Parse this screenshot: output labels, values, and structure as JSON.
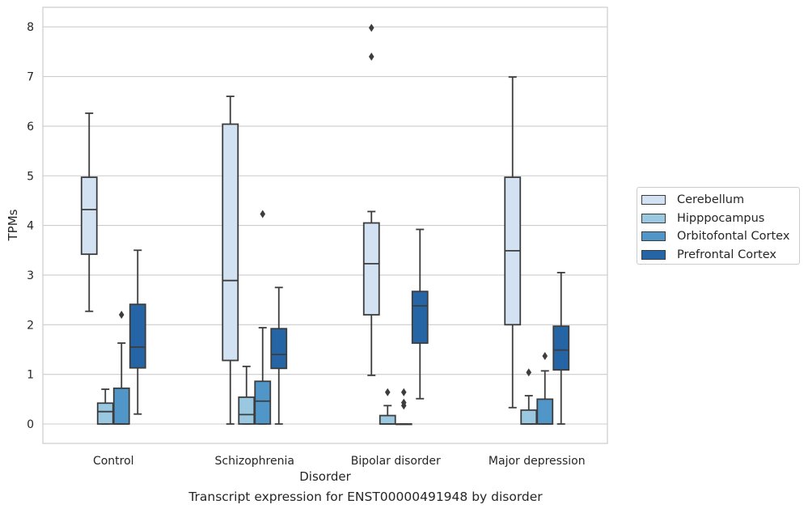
{
  "caption": "Transcript expression for ENST00000491948 by disorder",
  "chart_data": {
    "type": "box",
    "title": "",
    "xlabel": "Disorder",
    "ylabel": "TPMs",
    "ylim": [
      -0.4,
      8.4
    ],
    "yticks": [
      0,
      1,
      2,
      3,
      4,
      5,
      6,
      7,
      8
    ],
    "grid": true,
    "legend_placement": "right, outside plot",
    "categories": [
      "Control",
      "Schizophrenia",
      "Bipolar disorder",
      "Major depression"
    ],
    "series": [
      {
        "name": "Cerebellum",
        "color": "#d2e2f2",
        "boxes": [
          {
            "whislo": 2.27,
            "q1": 3.42,
            "median": 4.32,
            "q3": 4.97,
            "whishi": 6.26,
            "fliers": []
          },
          {
            "whislo": 0.0,
            "q1": 1.28,
            "median": 2.89,
            "q3": 6.04,
            "whishi": 6.6,
            "fliers": []
          },
          {
            "whislo": 0.98,
            "q1": 2.2,
            "median": 3.23,
            "q3": 4.05,
            "whishi": 4.28,
            "fliers": [
              7.4,
              7.98
            ]
          },
          {
            "whislo": 0.33,
            "q1": 2.0,
            "median": 3.49,
            "q3": 4.97,
            "whishi": 6.99,
            "fliers": []
          }
        ]
      },
      {
        "name": "Hipppocampus",
        "color": "#9ac8e1",
        "boxes": [
          {
            "whislo": 0.0,
            "q1": 0.0,
            "median": 0.25,
            "q3": 0.42,
            "whishi": 0.7,
            "fliers": []
          },
          {
            "whislo": 0.0,
            "q1": 0.0,
            "median": 0.19,
            "q3": 0.54,
            "whishi": 1.16,
            "fliers": []
          },
          {
            "whislo": 0.0,
            "q1": 0.0,
            "median": 0.0,
            "q3": 0.17,
            "whishi": 0.37,
            "fliers": [
              0.64
            ]
          },
          {
            "whislo": 0.0,
            "q1": 0.0,
            "median": 0.0,
            "q3": 0.28,
            "whishi": 0.57,
            "fliers": [
              1.04
            ]
          }
        ]
      },
      {
        "name": "Orbitofontal Cortex",
        "color": "#5096c8",
        "boxes": [
          {
            "whislo": 0.0,
            "q1": 0.0,
            "median": 0.0,
            "q3": 0.72,
            "whishi": 1.63,
            "fliers": [
              2.2
            ]
          },
          {
            "whislo": 0.0,
            "q1": 0.0,
            "median": 0.46,
            "q3": 0.86,
            "whishi": 1.94,
            "fliers": [
              4.23
            ]
          },
          {
            "whislo": 0.0,
            "q1": 0.0,
            "median": 0.0,
            "q3": 0.0,
            "whishi": 0.0,
            "fliers": [
              0.37,
              0.43,
              0.64
            ]
          },
          {
            "whislo": 0.0,
            "q1": 0.0,
            "median": 0.0,
            "q3": 0.5,
            "whishi": 1.07,
            "fliers": [
              1.37
            ]
          }
        ]
      },
      {
        "name": "Prefrontal Cortex",
        "color": "#2565a6",
        "boxes": [
          {
            "whislo": 0.2,
            "q1": 1.13,
            "median": 1.55,
            "q3": 2.41,
            "whishi": 3.5,
            "fliers": []
          },
          {
            "whislo": 0.0,
            "q1": 1.12,
            "median": 1.4,
            "q3": 1.92,
            "whishi": 2.75,
            "fliers": []
          },
          {
            "whislo": 0.51,
            "q1": 1.63,
            "median": 2.38,
            "q3": 2.67,
            "whishi": 3.92,
            "fliers": []
          },
          {
            "whislo": 0.0,
            "q1": 1.09,
            "median": 1.49,
            "q3": 1.97,
            "whishi": 3.05,
            "fliers": []
          }
        ]
      }
    ]
  }
}
